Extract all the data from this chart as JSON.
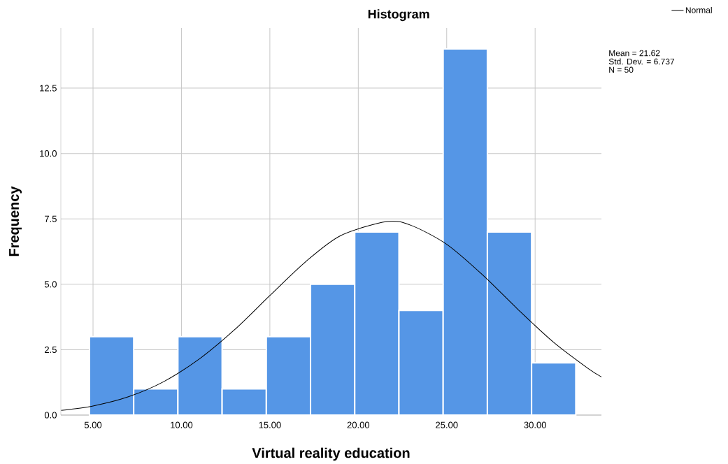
{
  "chart_data": {
    "type": "histogram",
    "title": "Histogram",
    "xlabel": "Virtual reality education",
    "ylabel": "Frequency",
    "series": [
      {
        "color": "#5596e6",
        "bins": [
          4.8,
          7.3,
          9.8,
          12.3,
          14.8,
          17.3,
          19.8,
          22.3,
          24.8,
          27.3,
          29.8,
          32.3
        ],
        "values": [
          3,
          1,
          3,
          1,
          3,
          5,
          7,
          4,
          14,
          7,
          2
        ]
      },
      {
        "type": "line",
        "name": "Normal",
        "color": "#000000",
        "x": [
          3.2,
          5,
          7,
          9,
          11,
          13,
          15,
          17,
          19,
          21.62,
          23,
          25,
          27,
          29,
          31,
          33,
          33.75
        ],
        "values": [
          0.18,
          0.35,
          0.7,
          1.28,
          2.14,
          3.26,
          4.57,
          5.85,
          6.86,
          7.4,
          7.25,
          6.53,
          5.38,
          4.06,
          2.81,
          1.78,
          1.46
        ]
      }
    ],
    "xlim": [
      3.18,
      33.75
    ],
    "ylim": [
      0,
      14.8
    ],
    "xticks": [
      {
        "value": 5,
        "label": "5.00"
      },
      {
        "value": 10,
        "label": "10.00"
      },
      {
        "value": 15,
        "label": "15.00"
      },
      {
        "value": 20,
        "label": "20.00"
      },
      {
        "value": 25,
        "label": "25.00"
      },
      {
        "value": 30,
        "label": "30.00"
      }
    ],
    "yticks": [
      {
        "value": 0,
        "label": "0.0"
      },
      {
        "value": 2.5,
        "label": "2.5"
      },
      {
        "value": 5,
        "label": "5.0"
      },
      {
        "value": 7.5,
        "label": "7.5"
      },
      {
        "value": 10,
        "label": "10.0"
      },
      {
        "value": 12.5,
        "label": "12.5"
      }
    ],
    "grid": true,
    "legend": "top right",
    "annotations": [
      "Mean = 21.62",
      "Std. Dev. = 6.737",
      "N = 50"
    ]
  }
}
